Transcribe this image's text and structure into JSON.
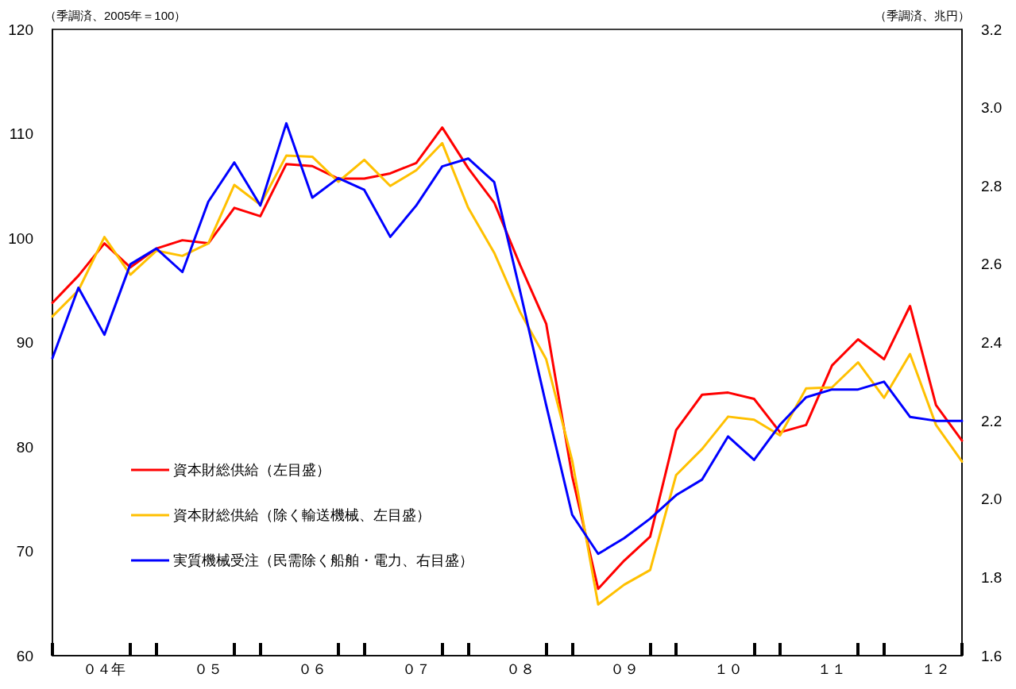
{
  "chart_data": {
    "type": "line",
    "ylabel": "（季調済、2005年＝100）",
    "y2label": "（季調済、兆円）",
    "categories": [
      null,
      null,
      "０４年",
      null,
      null,
      null,
      "０５",
      null,
      null,
      null,
      "０６",
      null,
      null,
      null,
      "０７",
      null,
      null,
      null,
      "０８",
      null,
      null,
      null,
      "０９",
      null,
      null,
      null,
      "１０",
      null,
      null,
      null,
      "１１",
      null,
      null,
      null,
      "１２",
      null
    ],
    "series": [
      {
        "name": "資本財総供給（左目盛）",
        "color": "#ff0000",
        "values": [
          93.8,
          96.4,
          99.5,
          97.2,
          99.0,
          99.8,
          99.5,
          102.9,
          102.1,
          107.1,
          106.9,
          105.7,
          105.7,
          106.2,
          107.2,
          110.6,
          106.7,
          103.4,
          97.4,
          91.8,
          77.2,
          66.4,
          69.1,
          71.4,
          81.6,
          85.0,
          85.2,
          84.6,
          81.4,
          82.1,
          87.8,
          90.3,
          88.4,
          93.5,
          84.0,
          80.6
        ]
      },
      {
        "name": "資本財総供給（除く輸送機械、左目盛）",
        "color": "#ffc000",
        "values": [
          92.5,
          95.0,
          100.1,
          96.5,
          98.8,
          98.3,
          99.5,
          105.1,
          103.2,
          107.9,
          107.8,
          105.4,
          107.5,
          105.0,
          106.5,
          109.1,
          102.9,
          98.6,
          92.9,
          88.4,
          78.7,
          64.9,
          66.8,
          68.2,
          77.3,
          79.8,
          82.9,
          82.6,
          81.1,
          85.6,
          85.7,
          88.1,
          84.7,
          88.9,
          82.1,
          78.6
        ]
      },
      {
        "name": "実質機械受注（民需除く船舶・電力、右目盛）",
        "color": "#0000ff",
        "axis": "y2",
        "values": [
          2.36,
          2.54,
          2.42,
          2.6,
          2.64,
          2.58,
          2.76,
          2.86,
          2.75,
          2.96,
          2.77,
          2.82,
          2.79,
          2.67,
          2.75,
          2.85,
          2.87,
          2.81,
          2.53,
          2.24,
          1.96,
          1.86,
          1.9,
          1.95,
          2.01,
          2.05,
          2.16,
          2.1,
          2.19,
          2.26,
          2.28,
          2.28,
          2.3,
          2.21,
          2.2,
          2.2
        ]
      }
    ],
    "ylim": [
      60,
      120
    ],
    "yticks": [
      60,
      70,
      80,
      90,
      100,
      110,
      120
    ],
    "y2lim": [
      1.6,
      3.2
    ],
    "y2ticks": [
      1.6,
      1.8,
      {
        "value": 2,
        "label": "2.0"
      },
      2.2,
      2.4,
      2.6,
      2.8,
      {
        "value": 3,
        "label": "3.0"
      },
      3.2
    ],
    "legend": "bottom left",
    "grid": false,
    "marker": "none",
    "line_style": "solid"
  }
}
